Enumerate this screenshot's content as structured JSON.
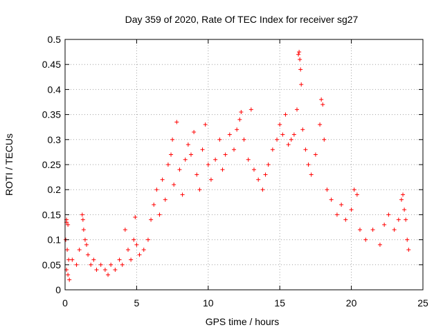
{
  "chart_data": {
    "type": "scatter",
    "title": "Day 359 of 2020, Rate Of TEC Index for receiver sg27",
    "xlabel": "GPS time / hours",
    "ylabel": "ROTI / TECUs",
    "xlim": [
      0,
      25
    ],
    "ylim": [
      0,
      0.5
    ],
    "x_ticks": [
      0,
      5,
      10,
      15,
      20,
      25
    ],
    "x_tick_labels": [
      "0",
      "5",
      "10",
      "15",
      "20",
      "25"
    ],
    "y_ticks": [
      0,
      0.05,
      0.1,
      0.15,
      0.2,
      0.25,
      0.3,
      0.35,
      0.4,
      0.45,
      0.5
    ],
    "y_tick_labels": [
      "0",
      "0.05",
      "0.1",
      "0.15",
      "0.2",
      "0.25",
      "0.3",
      "0.35",
      "0.4",
      "0.45",
      "0.5"
    ],
    "grid": true,
    "marker": "+",
    "color": "#ff0000",
    "series": [
      {
        "points": [
          [
            0.1,
            0.14
          ],
          [
            0.1,
            0.135
          ],
          [
            0.2,
            0.13
          ],
          [
            0.05,
            0.1
          ],
          [
            0.15,
            0.08
          ],
          [
            0.25,
            0.06
          ],
          [
            0.1,
            0.04
          ],
          [
            0.2,
            0.03
          ],
          [
            0.3,
            0.02
          ],
          [
            0.5,
            0.06
          ],
          [
            0.8,
            0.05
          ],
          [
            1.0,
            0.08
          ],
          [
            1.2,
            0.15
          ],
          [
            1.25,
            0.14
          ],
          [
            1.3,
            0.12
          ],
          [
            1.4,
            0.1
          ],
          [
            1.5,
            0.09
          ],
          [
            1.6,
            0.07
          ],
          [
            1.8,
            0.05
          ],
          [
            2.0,
            0.06
          ],
          [
            2.2,
            0.04
          ],
          [
            2.5,
            0.05
          ],
          [
            2.8,
            0.04
          ],
          [
            3.0,
            0.03
          ],
          [
            3.2,
            0.05
          ],
          [
            3.5,
            0.04
          ],
          [
            3.8,
            0.06
          ],
          [
            4.0,
            0.05
          ],
          [
            4.2,
            0.12
          ],
          [
            4.4,
            0.08
          ],
          [
            4.6,
            0.06
          ],
          [
            4.8,
            0.1
          ],
          [
            4.9,
            0.145
          ],
          [
            5.0,
            0.09
          ],
          [
            5.2,
            0.07
          ],
          [
            5.5,
            0.08
          ],
          [
            5.8,
            0.1
          ],
          [
            6.0,
            0.14
          ],
          [
            6.2,
            0.17
          ],
          [
            6.4,
            0.2
          ],
          [
            6.6,
            0.15
          ],
          [
            6.8,
            0.22
          ],
          [
            7.0,
            0.18
          ],
          [
            7.2,
            0.25
          ],
          [
            7.4,
            0.27
          ],
          [
            7.5,
            0.3
          ],
          [
            7.6,
            0.21
          ],
          [
            7.8,
            0.335
          ],
          [
            8.0,
            0.24
          ],
          [
            8.2,
            0.19
          ],
          [
            8.4,
            0.26
          ],
          [
            8.6,
            0.29
          ],
          [
            8.8,
            0.27
          ],
          [
            9.0,
            0.315
          ],
          [
            9.2,
            0.23
          ],
          [
            9.4,
            0.2
          ],
          [
            9.6,
            0.28
          ],
          [
            9.8,
            0.33
          ],
          [
            10.0,
            0.25
          ],
          [
            10.2,
            0.22
          ],
          [
            10.5,
            0.26
          ],
          [
            10.8,
            0.3
          ],
          [
            11.0,
            0.24
          ],
          [
            11.2,
            0.27
          ],
          [
            11.5,
            0.31
          ],
          [
            11.8,
            0.28
          ],
          [
            12.0,
            0.32
          ],
          [
            12.2,
            0.34
          ],
          [
            12.3,
            0.355
          ],
          [
            12.5,
            0.3
          ],
          [
            12.8,
            0.26
          ],
          [
            13.0,
            0.36
          ],
          [
            13.2,
            0.24
          ],
          [
            13.5,
            0.22
          ],
          [
            13.8,
            0.2
          ],
          [
            14.0,
            0.23
          ],
          [
            14.2,
            0.25
          ],
          [
            14.5,
            0.28
          ],
          [
            14.8,
            0.3
          ],
          [
            15.0,
            0.33
          ],
          [
            15.2,
            0.31
          ],
          [
            15.4,
            0.35
          ],
          [
            15.6,
            0.29
          ],
          [
            15.8,
            0.3
          ],
          [
            16.0,
            0.31
          ],
          [
            16.2,
            0.36
          ],
          [
            16.3,
            0.47
          ],
          [
            16.35,
            0.475
          ],
          [
            16.4,
            0.46
          ],
          [
            16.45,
            0.44
          ],
          [
            16.5,
            0.41
          ],
          [
            16.6,
            0.32
          ],
          [
            16.8,
            0.28
          ],
          [
            17.0,
            0.25
          ],
          [
            17.2,
            0.23
          ],
          [
            17.5,
            0.27
          ],
          [
            17.8,
            0.33
          ],
          [
            17.9,
            0.38
          ],
          [
            18.0,
            0.37
          ],
          [
            18.1,
            0.3
          ],
          [
            18.3,
            0.2
          ],
          [
            18.6,
            0.18
          ],
          [
            19.0,
            0.15
          ],
          [
            19.3,
            0.17
          ],
          [
            19.6,
            0.14
          ],
          [
            20.0,
            0.16
          ],
          [
            20.2,
            0.2
          ],
          [
            20.4,
            0.19
          ],
          [
            20.6,
            0.12
          ],
          [
            21.0,
            0.1
          ],
          [
            21.5,
            0.12
          ],
          [
            22.0,
            0.09
          ],
          [
            22.3,
            0.13
          ],
          [
            22.6,
            0.15
          ],
          [
            23.0,
            0.12
          ],
          [
            23.3,
            0.14
          ],
          [
            23.5,
            0.18
          ],
          [
            23.6,
            0.19
          ],
          [
            23.7,
            0.16
          ],
          [
            23.8,
            0.14
          ],
          [
            23.9,
            0.1
          ],
          [
            24.0,
            0.08
          ]
        ]
      }
    ]
  }
}
